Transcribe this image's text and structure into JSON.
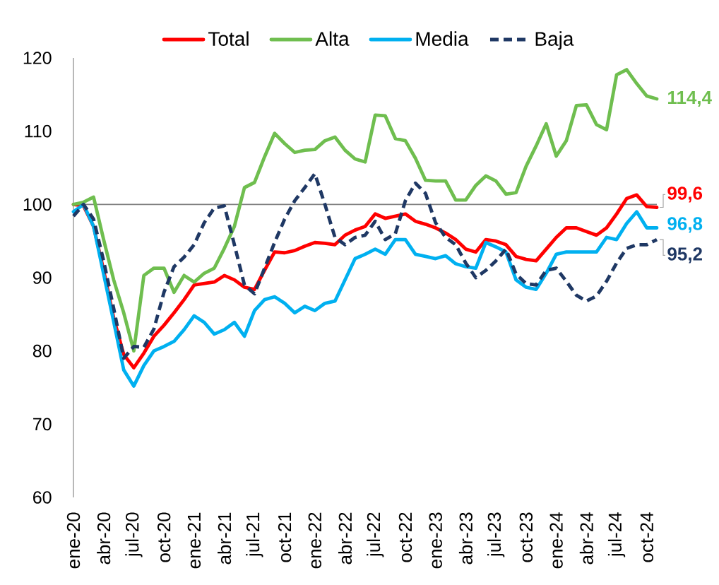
{
  "chart_data": {
    "type": "line",
    "categories": [
      "ene-20",
      null,
      null,
      "abr-20",
      null,
      null,
      "jul-20",
      null,
      null,
      "oct-20",
      null,
      null,
      "ene-21",
      null,
      null,
      "abr-21",
      null,
      null,
      "jul-21",
      null,
      null,
      "oct-21",
      null,
      null,
      "ene-22",
      null,
      null,
      "abr-22",
      null,
      null,
      "jul-22",
      null,
      null,
      "oct-22",
      null,
      null,
      "ene-23",
      null,
      null,
      "abr-23",
      null,
      null,
      "jul-23",
      null,
      null,
      "oct-23",
      null,
      null,
      "ene-24",
      null,
      null,
      "abr-24",
      null,
      null,
      "jul-24",
      null,
      null,
      "oct-24",
      null
    ],
    "series": [
      {
        "name": "Total",
        "color": "#ff0000",
        "values": [
          100,
          99.8,
          97,
          91,
          84.5,
          79.5,
          77.7,
          79.7,
          82,
          83.5,
          85.2,
          87,
          89,
          89.2,
          89.4,
          90.3,
          89.7,
          88.7,
          88.4,
          91,
          93.5,
          93.4,
          93.7,
          94.3,
          94.8,
          94.7,
          94.5,
          95.8,
          96.5,
          97,
          98.7,
          98.1,
          98.4,
          98.7,
          97.7,
          97.3,
          96.8,
          96.1,
          95.2,
          93.9,
          93.5,
          95.2,
          95,
          94.5,
          92.9,
          92.5,
          92.3,
          93.9,
          95.5,
          96.8,
          96.8,
          96.3,
          95.8,
          96.8,
          98.7,
          100.8,
          101.3,
          99.7,
          99.6
        ],
        "value_labels": [
          null,
          null,
          null,
          null,
          null,
          null,
          null,
          null,
          null,
          null,
          null,
          null,
          null,
          null,
          null,
          null,
          null,
          null,
          null,
          null,
          null,
          null,
          null,
          null,
          null,
          null,
          null,
          null,
          null,
          null,
          null,
          null,
          null,
          null,
          null,
          null,
          null,
          null,
          null,
          null,
          null,
          null,
          null,
          null,
          null,
          null,
          null,
          null,
          null,
          null,
          null,
          null,
          null,
          null,
          null,
          null,
          null,
          null,
          "99,6"
        ]
      },
      {
        "name": "Alta",
        "color": "#6fbe4f",
        "values": [
          100,
          100.3,
          101,
          95.2,
          89.7,
          85.2,
          80,
          90.3,
          91.3,
          91.3,
          88,
          90.3,
          89.4,
          90.6,
          91.3,
          94,
          97,
          102.3,
          103,
          106.5,
          109.7,
          108.3,
          107.1,
          107.4,
          107.5,
          108.7,
          109.2,
          107.4,
          106.2,
          105.8,
          112.2,
          112.1,
          109,
          108.7,
          106.3,
          103.3,
          103.2,
          103.2,
          100.6,
          100.6,
          102.6,
          103.9,
          103.2,
          101.4,
          101.6,
          105.2,
          108,
          111,
          106.6,
          108.7,
          113.5,
          113.6,
          110.9,
          110.2,
          117.7,
          118.4,
          116.5,
          114.8,
          114.4
        ],
        "value_labels": [
          null,
          null,
          null,
          null,
          null,
          null,
          null,
          null,
          null,
          null,
          null,
          null,
          null,
          null,
          null,
          null,
          null,
          null,
          null,
          null,
          null,
          null,
          null,
          null,
          null,
          null,
          null,
          null,
          null,
          null,
          null,
          null,
          null,
          null,
          null,
          null,
          null,
          null,
          null,
          null,
          null,
          null,
          null,
          null,
          null,
          null,
          null,
          null,
          null,
          null,
          null,
          null,
          null,
          null,
          null,
          null,
          null,
          null,
          "114,4"
        ]
      },
      {
        "name": "Media",
        "color": "#00b0f0",
        "values": [
          99,
          100,
          97,
          90.5,
          84,
          77.4,
          75.2,
          78,
          80,
          80.6,
          81.3,
          82.9,
          84.8,
          83.9,
          82.3,
          82.9,
          83.9,
          82,
          85.5,
          87,
          87.4,
          86.5,
          85.2,
          86.1,
          85.5,
          86.5,
          86.8,
          89.7,
          92.6,
          93.2,
          93.9,
          93.2,
          95.2,
          95.2,
          93.2,
          92.9,
          92.6,
          93,
          91.9,
          91.5,
          91.3,
          94.8,
          94.2,
          93.5,
          89.7,
          88.7,
          88.4,
          90.6,
          93.2,
          93.5,
          93.5,
          93.5,
          93.5,
          95.5,
          95.2,
          97.4,
          99,
          96.8,
          96.8
        ],
        "value_labels": [
          null,
          null,
          null,
          null,
          null,
          null,
          null,
          null,
          null,
          null,
          null,
          null,
          null,
          null,
          null,
          null,
          null,
          null,
          null,
          null,
          null,
          null,
          null,
          null,
          null,
          null,
          null,
          null,
          null,
          null,
          null,
          null,
          null,
          null,
          null,
          null,
          null,
          null,
          null,
          null,
          null,
          null,
          null,
          null,
          null,
          null,
          null,
          null,
          null,
          null,
          null,
          null,
          null,
          null,
          null,
          null,
          null,
          null,
          "96,8"
        ]
      },
      {
        "name": "Baja",
        "color": "#1f3864",
        "line_style": "dashed",
        "values": [
          98.4,
          100,
          98,
          92.3,
          85.8,
          79,
          80.6,
          80.5,
          83,
          88,
          91.5,
          92.8,
          94.5,
          97.5,
          99.5,
          99.8,
          94.5,
          89,
          87.8,
          91.3,
          94.8,
          98,
          100.5,
          102.3,
          104.2,
          100,
          95.5,
          94.5,
          95.5,
          95.8,
          97.7,
          95.2,
          96,
          100.5,
          102.9,
          101.5,
          97.5,
          95.5,
          94.5,
          92,
          90,
          91,
          92.3,
          93.9,
          90.5,
          89.2,
          89,
          91,
          91.3,
          89.5,
          87.6,
          86.8,
          87.5,
          89.5,
          92,
          94,
          94.5,
          94.5,
          95.2
        ],
        "value_labels": [
          null,
          null,
          null,
          null,
          null,
          null,
          null,
          null,
          null,
          null,
          null,
          null,
          null,
          null,
          null,
          null,
          null,
          null,
          null,
          null,
          null,
          null,
          null,
          null,
          null,
          null,
          null,
          null,
          null,
          null,
          null,
          null,
          null,
          null,
          null,
          null,
          null,
          null,
          null,
          null,
          null,
          null,
          null,
          null,
          null,
          null,
          null,
          null,
          null,
          null,
          null,
          null,
          null,
          null,
          null,
          null,
          null,
          null,
          "95,2"
        ]
      }
    ],
    "ylim": [
      60,
      120
    ],
    "yticks": [
      60,
      70,
      80,
      90,
      100,
      110,
      120
    ],
    "ref_lines": [
      {
        "axis": "y",
        "value": 100,
        "color": "#7f7f7f"
      }
    ],
    "line_style": "solid",
    "legend": "top"
  }
}
